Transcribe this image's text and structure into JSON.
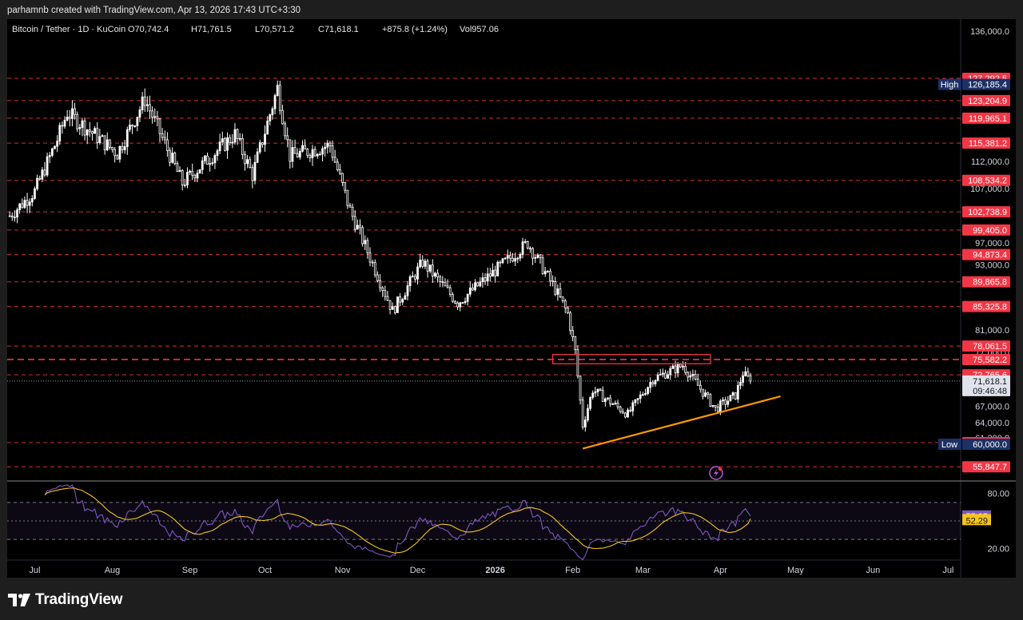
{
  "header": {
    "created_text": "parhamnb created with TradingView.com, Apr 13, 2026 17:43 UTC+3:30"
  },
  "legend": {
    "symbol": "Bitcoin / Tether · 1D · KuCoin",
    "open": "O70,742.4",
    "high": "H71,761.5",
    "low": "L70,571.2",
    "close": "C71,618.1",
    "change": "+875.8 (+1.24%)",
    "volume": "Vol957.06"
  },
  "footer": {
    "brand": "TradingView"
  },
  "colors": {
    "background": "#000000",
    "candle": "#ffffff",
    "resistance_line": "#f23645",
    "support_trendline": "#ff9800",
    "rsi_line": "#7e57c2",
    "rsi_ma_line": "#f5c518",
    "high_low_badge": "#1c3166"
  },
  "chart_data": {
    "type": "candlestick",
    "symbol": "Bitcoin / Tether",
    "timeframe": "1D",
    "exchange": "KuCoin",
    "ylim": [
      55000,
      137000
    ],
    "price_axis_ticks": [
      "136,000.0",
      "112,000.0",
      "107,000.0",
      "97,000.0",
      "93,000.0",
      "81,000.0",
      "77,000.0",
      "67,000.0",
      "64,000.0",
      "61,200.0"
    ],
    "time_axis_labels": [
      "Jul",
      "Aug",
      "Sep",
      "Oct",
      "Nov",
      "Dec",
      "2026",
      "Feb",
      "Mar",
      "Apr",
      "May",
      "Jun",
      "Jul"
    ],
    "price_path_anchors": [
      {
        "d": "2025-06-21",
        "p": 102000
      },
      {
        "d": "2025-07-01",
        "p": 106500
      },
      {
        "d": "2025-07-10",
        "p": 116000
      },
      {
        "d": "2025-07-14",
        "p": 121000
      },
      {
        "d": "2025-08-03",
        "p": 113500
      },
      {
        "d": "2025-08-14",
        "p": 123500
      },
      {
        "d": "2025-08-29",
        "p": 108000
      },
      {
        "d": "2025-09-19",
        "p": 117000
      },
      {
        "d": "2025-09-26",
        "p": 109500
      },
      {
        "d": "2025-10-06",
        "p": 125500
      },
      {
        "d": "2025-10-11",
        "p": 113000
      },
      {
        "d": "2025-10-27",
        "p": 115000
      },
      {
        "d": "2025-11-04",
        "p": 103000
      },
      {
        "d": "2025-11-21",
        "p": 84500
      },
      {
        "d": "2025-12-03",
        "p": 93500
      },
      {
        "d": "2025-12-17",
        "p": 86000
      },
      {
        "d": "2026-01-05",
        "p": 93500
      },
      {
        "d": "2026-01-14",
        "p": 97000
      },
      {
        "d": "2026-01-25",
        "p": 88500
      },
      {
        "d": "2026-01-30",
        "p": 84000
      },
      {
        "d": "2026-02-02",
        "p": 77000
      },
      {
        "d": "2026-02-05",
        "p": 63500
      },
      {
        "d": "2026-02-09",
        "p": 70000
      },
      {
        "d": "2026-02-23",
        "p": 65500
      },
      {
        "d": "2026-03-05",
        "p": 72000
      },
      {
        "d": "2026-03-17",
        "p": 74500
      },
      {
        "d": "2026-03-30",
        "p": 66500
      },
      {
        "d": "2026-04-07",
        "p": 69000
      },
      {
        "d": "2026-04-10",
        "p": 73000
      },
      {
        "d": "2026-04-13",
        "p": 71618.1
      }
    ],
    "current": {
      "price": "71,618.1",
      "countdown": "09:46:48",
      "value": 71618.1
    },
    "horizontal_levels": [
      {
        "value": 127292.5,
        "label": "127,292.5"
      },
      {
        "value": 123204.9,
        "label": "123,204.9"
      },
      {
        "value": 119965.1,
        "label": "119,965.1"
      },
      {
        "value": 115381.2,
        "label": "115,381.2"
      },
      {
        "value": 108534.2,
        "label": "108,534.2"
      },
      {
        "value": 102738.9,
        "label": "102,738.9"
      },
      {
        "value": 99405.0,
        "label": "99,405.0"
      },
      {
        "value": 94873.4,
        "label": "94,873.4"
      },
      {
        "value": 89865.8,
        "label": "89,865.8"
      },
      {
        "value": 85325.8,
        "label": "85,325.8"
      },
      {
        "value": 78061.5,
        "label": "78,061.5"
      },
      {
        "value": 75582.2,
        "label": "75,582.2",
        "emphasis": true
      },
      {
        "value": 72765.6,
        "label": "72,765.6"
      },
      {
        "value": 60299.5,
        "label": "60,299.5"
      },
      {
        "value": 55847.7,
        "label": "55,847.7"
      }
    ],
    "high_marker": {
      "label": "High",
      "value": 126185.4,
      "text": "126,185.4"
    },
    "low_marker": {
      "label": "Low",
      "value": 60000.0,
      "text": "60,000.0"
    },
    "resistance_box": {
      "from": "2026-01-24",
      "to": "2026-03-28",
      "price_low": 74800,
      "price_high": 76500
    },
    "trendline": {
      "from": {
        "d": "2026-02-05",
        "p": 59200
      },
      "to": {
        "d": "2026-04-25",
        "p": 68800
      }
    },
    "rsi": {
      "levels": [
        70,
        50,
        30
      ],
      "ylim": [
        12,
        88
      ],
      "axis_ticks": [
        "80.00",
        "20.00"
      ],
      "value": "55.35",
      "ma_value": "52.29",
      "value_num": 55.35,
      "ma_value_num": 52.29
    }
  }
}
